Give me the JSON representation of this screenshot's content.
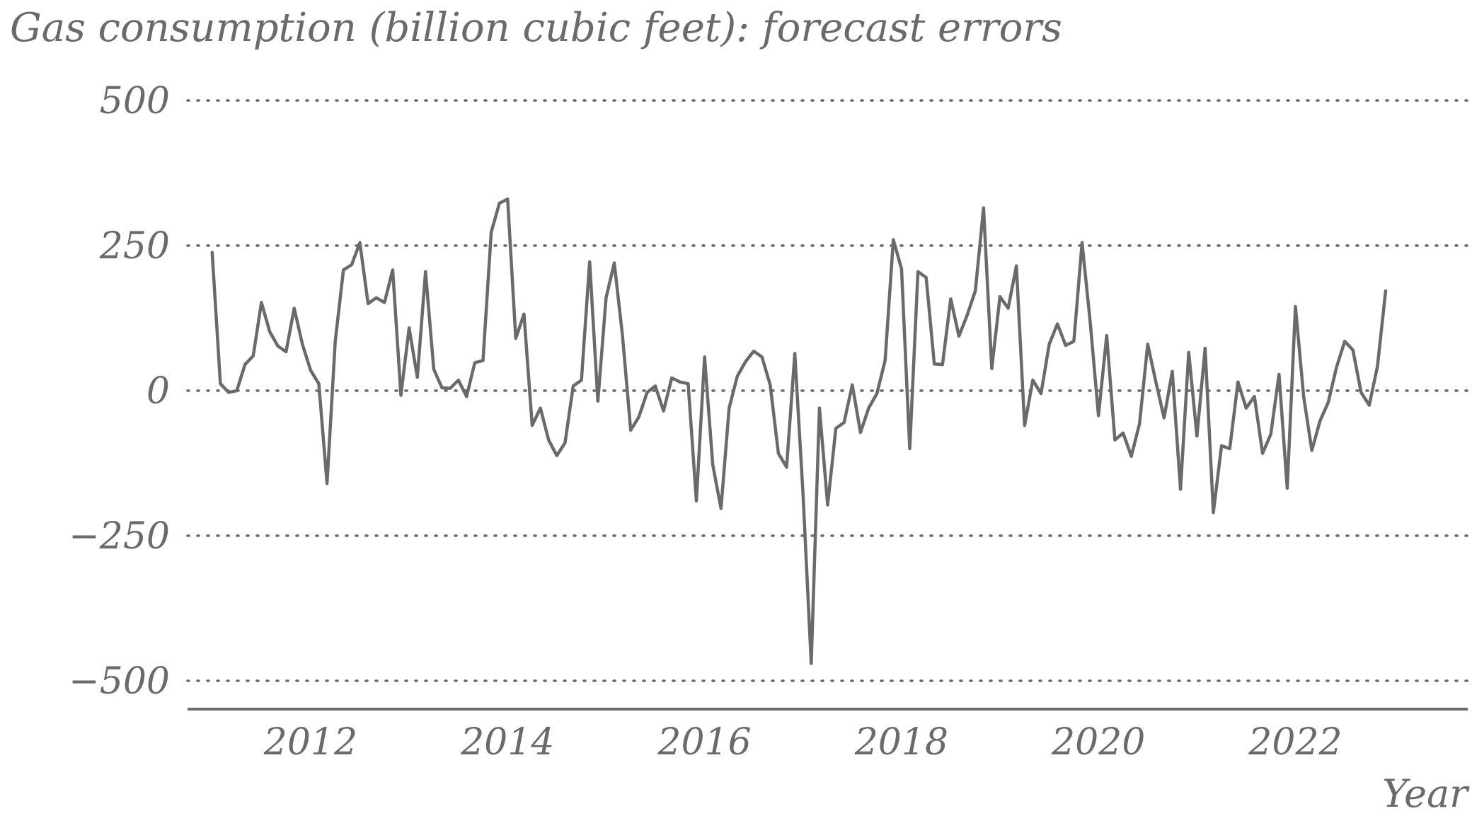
{
  "chart_data": {
    "type": "line",
    "title": "Gas consumption (billion cubic feet): forecast errors",
    "xlabel": "Year",
    "ylabel": "",
    "ylim": [
      -500,
      500
    ],
    "xlim": [
      2010.75,
      2023.75
    ],
    "yticks": [
      {
        "value": 500,
        "label": "500"
      },
      {
        "value": 250,
        "label": "250"
      },
      {
        "value": 0,
        "label": "0"
      },
      {
        "value": -250,
        "label": "−250"
      },
      {
        "value": -500,
        "label": "−500"
      }
    ],
    "xticks": [
      {
        "value": 2012,
        "label": "2012"
      },
      {
        "value": 2014,
        "label": "2014"
      },
      {
        "value": 2016,
        "label": "2016"
      },
      {
        "value": 2018,
        "label": "2018"
      },
      {
        "value": 2020,
        "label": "2020"
      },
      {
        "value": 2022,
        "label": "2022"
      }
    ],
    "grid": "horizontal-dotted",
    "color": "#6a6a6a",
    "series": [
      {
        "start_year": 2011,
        "frequency": "monthly",
        "values": [
          238,
          12,
          -3,
          0,
          45,
          60,
          152,
          102,
          77,
          67,
          142,
          80,
          35,
          12,
          -160,
          85,
          208,
          217,
          255,
          150,
          160,
          152,
          208,
          -8,
          108,
          23,
          205,
          37,
          5,
          4,
          18,
          -10,
          48,
          52,
          273,
          323,
          330,
          90,
          132,
          -60,
          -30,
          -85,
          -112,
          -90,
          8,
          18,
          222,
          -18,
          160,
          220,
          95,
          -68,
          -45,
          -3,
          8,
          -35,
          22,
          15,
          12,
          -190,
          58,
          -128,
          -203,
          -30,
          25,
          50,
          68,
          58,
          10,
          -108,
          -132,
          64,
          -178,
          -470,
          -30,
          -197,
          -65,
          -55,
          10,
          -72,
          -30,
          -5,
          52,
          260,
          210,
          -100,
          205,
          195,
          46,
          45,
          158,
          94,
          130,
          172,
          315,
          38,
          162,
          142,
          215,
          -60,
          18,
          -5,
          80,
          115,
          78,
          85,
          255,
          117,
          -43,
          95,
          -85,
          -73,
          -113,
          -57,
          80,
          15,
          -47,
          33,
          -170,
          66,
          -78,
          73,
          -210,
          -95,
          -100,
          15,
          -30,
          -10,
          -108,
          -75,
          28,
          -168,
          145,
          -10,
          -103,
          -52,
          -20,
          40,
          85,
          70,
          -3,
          -25,
          42,
          172
        ]
      }
    ]
  }
}
